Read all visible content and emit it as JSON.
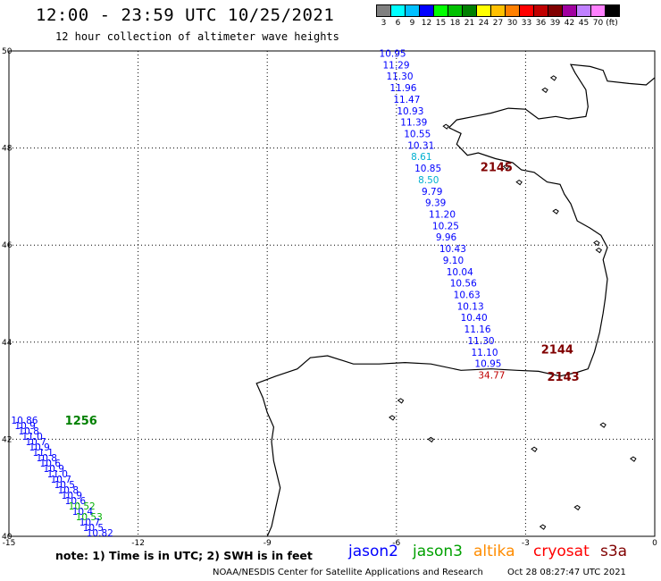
{
  "header": {
    "title": "12:00 - 23:59 UTC 10/25/2021",
    "subtitle": "12 hour collection of altimeter wave heights"
  },
  "colorbar": {
    "unit_label": "(ft)",
    "bins": [
      {
        "label": "3",
        "color": "#808080"
      },
      {
        "label": "6",
        "color": "#00ffff"
      },
      {
        "label": "9",
        "color": "#00c0ff"
      },
      {
        "label": "12",
        "color": "#0000ff"
      },
      {
        "label": "15",
        "color": "#00ff00"
      },
      {
        "label": "18",
        "color": "#00c000"
      },
      {
        "label": "21",
        "color": "#008000"
      },
      {
        "label": "24",
        "color": "#ffff00"
      },
      {
        "label": "27",
        "color": "#ffc000"
      },
      {
        "label": "30",
        "color": "#ff8000"
      },
      {
        "label": "33",
        "color": "#ff0000"
      },
      {
        "label": "36",
        "color": "#c00000"
      },
      {
        "label": "39",
        "color": "#800000"
      },
      {
        "label": "42",
        "color": "#a000a0"
      },
      {
        "label": "45",
        "color": "#c080ff"
      },
      {
        "label": "70",
        "color": "#ff80ff"
      },
      {
        "label": "",
        "color": "#000000"
      }
    ]
  },
  "map": {
    "lon_range": [
      -15,
      0
    ],
    "lat_range": [
      40,
      50
    ],
    "lon_ticks": [
      "-15",
      "-12",
      "-9",
      "-6",
      "-3",
      "0"
    ],
    "lat_ticks": [
      "40",
      "42",
      "44",
      "46",
      "48",
      "50"
    ],
    "grid": "dotted",
    "track_east": [
      {
        "v": "10.95",
        "color": "#0000ff"
      },
      {
        "v": "11.29",
        "color": "#0000ff"
      },
      {
        "v": "11.30",
        "color": "#0000ff"
      },
      {
        "v": "11.96",
        "color": "#0000ff"
      },
      {
        "v": "11.47",
        "color": "#0000ff"
      },
      {
        "v": "10.93",
        "color": "#0000ff"
      },
      {
        "v": "11.39",
        "color": "#0000ff"
      },
      {
        "v": "10.55",
        "color": "#0000ff"
      },
      {
        "v": "10.31",
        "color": "#0000ff"
      },
      {
        "v": "8.61",
        "color": "#00b0d0"
      },
      {
        "v": "10.85",
        "color": "#0000ff"
      },
      {
        "v": "8.50",
        "color": "#00b0d0"
      },
      {
        "v": "9.79",
        "color": "#0000ff"
      },
      {
        "v": "9.39",
        "color": "#0000ff"
      },
      {
        "v": "11.20",
        "color": "#0000ff"
      },
      {
        "v": "10.25",
        "color": "#0000ff"
      },
      {
        "v": "9.96",
        "color": "#0000ff"
      },
      {
        "v": "10.43",
        "color": "#0000ff"
      },
      {
        "v": "9.10",
        "color": "#0000ff"
      },
      {
        "v": "10.04",
        "color": "#0000ff"
      },
      {
        "v": "10.56",
        "color": "#0000ff"
      },
      {
        "v": "10.63",
        "color": "#0000ff"
      },
      {
        "v": "10.13",
        "color": "#0000ff"
      },
      {
        "v": "10.40",
        "color": "#0000ff"
      },
      {
        "v": "11.16",
        "color": "#0000ff"
      },
      {
        "v": "11.30",
        "color": "#0000ff"
      },
      {
        "v": "11.10",
        "color": "#0000ff"
      },
      {
        "v": "10.95",
        "color": "#0000ff"
      },
      {
        "v": "34.77",
        "color": "#c00000"
      }
    ],
    "track_west": [
      {
        "v": "10.86",
        "color": "#0000ff"
      },
      {
        "v": "10.9",
        "color": "#0000ff"
      },
      {
        "v": "10.8",
        "color": "#0000ff"
      },
      {
        "v": "11.0",
        "color": "#0000ff"
      },
      {
        "v": "10.7",
        "color": "#0000ff"
      },
      {
        "v": "10.9",
        "color": "#0000ff"
      },
      {
        "v": "11.1",
        "color": "#0000ff"
      },
      {
        "v": "10.8",
        "color": "#0000ff"
      },
      {
        "v": "10.6",
        "color": "#0000ff"
      },
      {
        "v": "10.9",
        "color": "#0000ff"
      },
      {
        "v": "11.0",
        "color": "#0000ff"
      },
      {
        "v": "10.7",
        "color": "#0000ff"
      },
      {
        "v": "10.5",
        "color": "#0000ff"
      },
      {
        "v": "10.8",
        "color": "#0000ff"
      },
      {
        "v": "10.9",
        "color": "#0000ff"
      },
      {
        "v": "10.6",
        "color": "#0000ff"
      },
      {
        "v": "10.52",
        "color": "#00b000"
      },
      {
        "v": "10.4",
        "color": "#0000ff"
      },
      {
        "v": "10.53",
        "color": "#00b000"
      },
      {
        "v": "10.7",
        "color": "#0000ff"
      },
      {
        "v": "10.5",
        "color": "#0000ff"
      },
      {
        "v": "10.82",
        "color": "#0000ff"
      }
    ],
    "time_labels": [
      {
        "text": "2145",
        "color": "#800000"
      },
      {
        "text": "2144",
        "color": "#800000"
      },
      {
        "text": "2143",
        "color": "#800000"
      },
      {
        "text": "1256",
        "color": "#008000"
      }
    ]
  },
  "footer": {
    "note": "note: 1) Time is in UTC; 2) SWH is in feet",
    "satellites": [
      {
        "name": "jason2",
        "color": "#0000ff"
      },
      {
        "name": "jason3",
        "color": "#00a000"
      },
      {
        "name": "altika",
        "color": "#ff8c00"
      },
      {
        "name": "cryosat",
        "color": "#ff0000"
      },
      {
        "name": "s3a",
        "color": "#800000"
      }
    ],
    "credit": "NOAA/NESDIS Center for Satellite Applications and Research",
    "timestamp": "Oct 28 08:27:47 UTC 2021"
  }
}
